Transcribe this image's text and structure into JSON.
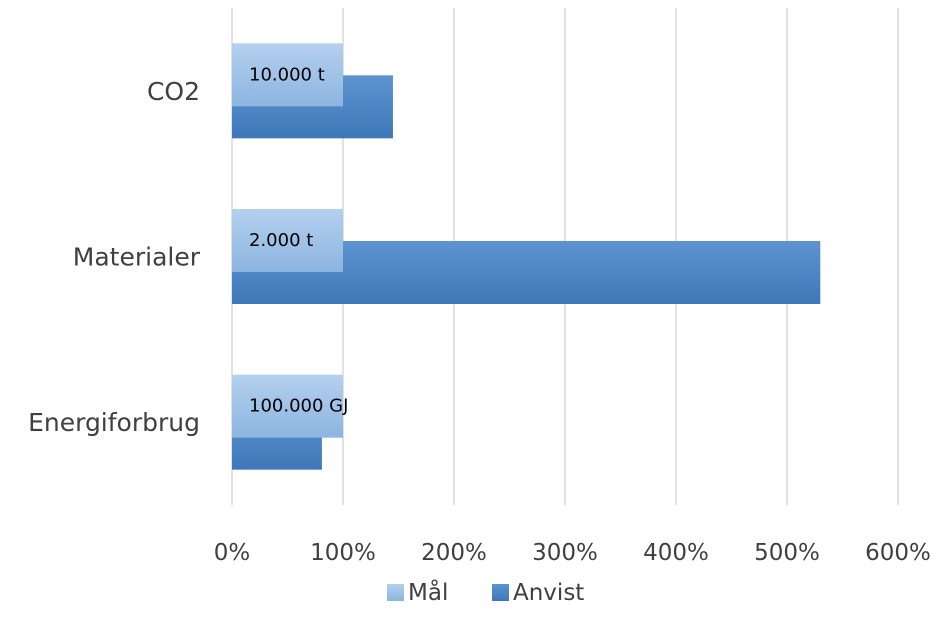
{
  "chart_data": {
    "type": "bar",
    "orientation": "horizontal",
    "categories": [
      "CO2",
      "Materialer",
      "Energiforbrug"
    ],
    "series": [
      {
        "name": "Mål",
        "values": [
          100,
          100,
          100
        ],
        "color": "#9dc3e6"
      },
      {
        "name": "Anvist",
        "values": [
          145,
          530,
          81
        ],
        "color": "#4a86c5"
      }
    ],
    "data_labels": [
      "10.000 t",
      "2.000 t",
      "100.000 GJ"
    ],
    "xticks": [
      "0%",
      "100%",
      "200%",
      "300%",
      "400%",
      "500%",
      "600%"
    ],
    "xlim": [
      0,
      600
    ],
    "grid": true,
    "legend": "bottom",
    "title": "",
    "xlabel": "",
    "ylabel": ""
  }
}
